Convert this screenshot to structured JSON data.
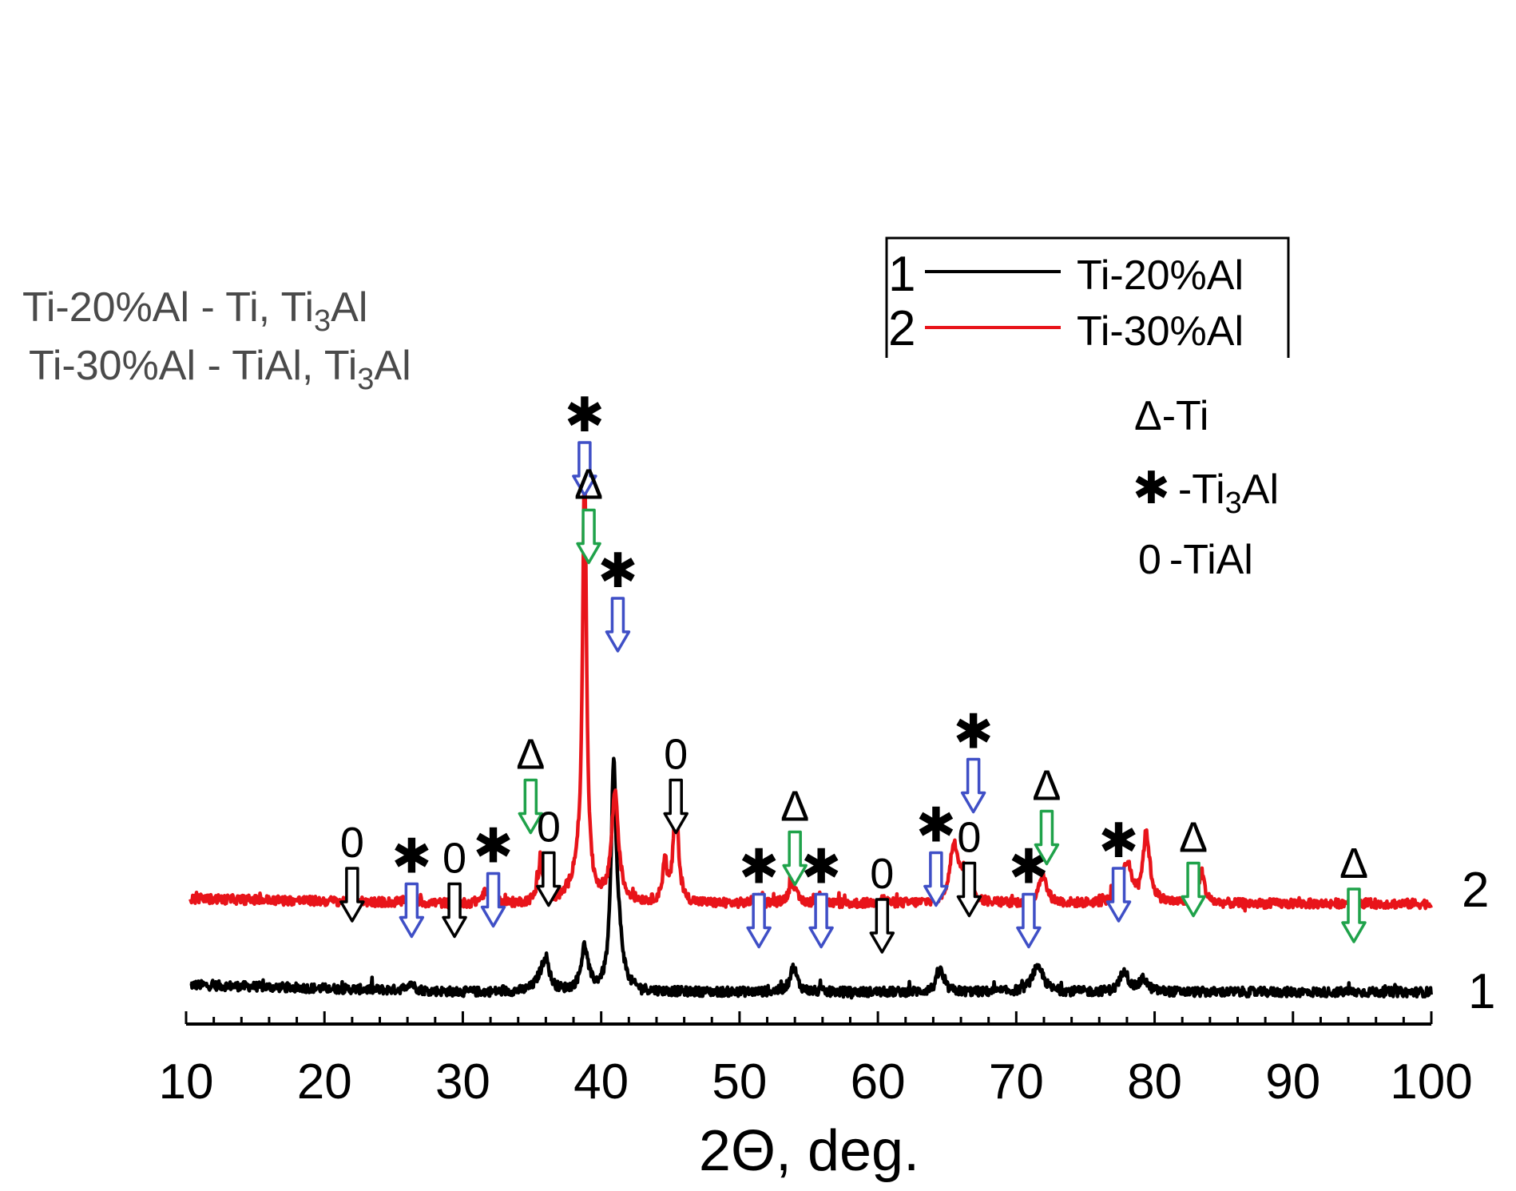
{
  "chart_data": {
    "type": "line",
    "title": "",
    "xlabel": "2Θ, deg.",
    "ylabel": "",
    "xlim": [
      10,
      100
    ],
    "x_ticks": [
      "10",
      "20",
      "30",
      "40",
      "50",
      "60",
      "70",
      "80",
      "90",
      "100"
    ],
    "grid": false,
    "composition_note": {
      "line1": {
        "label": "Ti-20%Al  -  Ti, Ti",
        "sub": "3",
        "tail": "Al"
      },
      "line2": {
        "label": "Ti-30%Al  - TiAl, Ti",
        "sub": "3",
        "tail": "Al"
      }
    },
    "legend": {
      "position": "top-right",
      "entries": [
        {
          "number": "1",
          "label": "Ti-20%Al",
          "color": "#000000"
        },
        {
          "number": "2",
          "label": "Ti-30%Al",
          "color": "#e8141a"
        }
      ]
    },
    "phase_key": [
      {
        "symbol": "Δ",
        "label": "-Ti",
        "sub": "",
        "tail": ""
      },
      {
        "symbol": "✱",
        "label": "-Ti",
        "sub": "3",
        "tail": "Al"
      },
      {
        "symbol": "0",
        "label": "-TiAl",
        "sub": "",
        "tail": ""
      }
    ],
    "series": [
      {
        "name": "Ti-20%Al",
        "curve_label": "1",
        "color": "#000000",
        "baseline": 0.1,
        "decay": 0.07,
        "peaks": [
          {
            "x": 26.2,
            "h": 0.08,
            "w": 0.3
          },
          {
            "x": 35.6,
            "h": 0.1,
            "w": 0.45
          },
          {
            "x": 36.0,
            "h": 0.28,
            "w": 0.3
          },
          {
            "x": 38.8,
            "h": 0.42,
            "w": 0.3
          },
          {
            "x": 40.9,
            "h": 2.08,
            "w": 0.22
          },
          {
            "x": 41.3,
            "h": 0.35,
            "w": 0.35
          },
          {
            "x": 53.9,
            "h": 0.24,
            "w": 0.3
          },
          {
            "x": 64.5,
            "h": 0.21,
            "w": 0.3
          },
          {
            "x": 71.4,
            "h": 0.17,
            "w": 0.45
          },
          {
            "x": 71.8,
            "h": 0.1,
            "w": 0.35
          },
          {
            "x": 77.8,
            "h": 0.22,
            "w": 0.32
          },
          {
            "x": 79.2,
            "h": 0.12,
            "w": 0.35
          }
        ]
      },
      {
        "name": "Ti-30%Al",
        "curve_label": "2",
        "color": "#e8141a",
        "baseline": 0.95,
        "decay": 0.05,
        "peaks": [
          {
            "x": 22.0,
            "h": 0.12,
            "w": 0.15
          },
          {
            "x": 26.2,
            "h": 0.06,
            "w": 0.25
          },
          {
            "x": 31.6,
            "h": 0.1,
            "w": 0.3
          },
          {
            "x": 35.6,
            "h": 0.37,
            "w": 0.22
          },
          {
            "x": 38.8,
            "h": 4.08,
            "w": 0.17
          },
          {
            "x": 38.3,
            "h": 0.25,
            "w": 0.6
          },
          {
            "x": 41.0,
            "h": 1.05,
            "w": 0.3
          },
          {
            "x": 44.6,
            "h": 0.4,
            "w": 0.18
          },
          {
            "x": 45.4,
            "h": 1.07,
            "w": 0.2
          },
          {
            "x": 51.3,
            "h": 0.06,
            "w": 0.3
          },
          {
            "x": 53.8,
            "h": 0.2,
            "w": 0.3
          },
          {
            "x": 55.8,
            "h": 0.07,
            "w": 0.25
          },
          {
            "x": 60.3,
            "h": 0.05,
            "w": 0.3
          },
          {
            "x": 65.5,
            "h": 0.53,
            "w": 0.35
          },
          {
            "x": 66.2,
            "h": 0.25,
            "w": 0.45
          },
          {
            "x": 71.9,
            "h": 0.27,
            "w": 0.35
          },
          {
            "x": 78.0,
            "h": 0.38,
            "w": 0.4
          },
          {
            "x": 79.4,
            "h": 0.66,
            "w": 0.3
          },
          {
            "x": 83.4,
            "h": 0.3,
            "w": 0.25
          },
          {
            "x": 94.3,
            "h": 0.05,
            "w": 0.3
          }
        ]
      }
    ],
    "annotations": [
      {
        "phase": "TiAl",
        "symbol": "0",
        "x": 22.0,
        "y": 1.4
      },
      {
        "phase": "Ti3Al",
        "symbol": "✱",
        "x": 26.3,
        "y": 1.25
      },
      {
        "phase": "TiAl",
        "symbol": "0",
        "x": 29.4,
        "y": 1.25
      },
      {
        "phase": "Ti3Al",
        "symbol": "✱",
        "x": 32.2,
        "y": 1.35
      },
      {
        "phase": "Ti",
        "symbol": "Δ",
        "x": 34.9,
        "y": 2.25
      },
      {
        "phase": "TiAl",
        "symbol": "0",
        "x": 36.2,
        "y": 1.55
      },
      {
        "phase": "Ti3Al",
        "symbol": "✱",
        "x": 38.8,
        "y": 5.5
      },
      {
        "phase": "Ti",
        "symbol": "Δ",
        "x": 39.1,
        "y": 4.85
      },
      {
        "phase": "Ti3Al",
        "symbol": "✱",
        "x": 41.2,
        "y": 4.0
      },
      {
        "phase": "TiAl",
        "symbol": "0",
        "x": 45.4,
        "y": 2.25
      },
      {
        "phase": "Ti3Al",
        "symbol": "✱",
        "x": 51.4,
        "y": 1.15
      },
      {
        "phase": "Ti",
        "symbol": "Δ",
        "x": 54.0,
        "y": 1.75
      },
      {
        "phase": "Ti3Al",
        "symbol": "✱",
        "x": 55.9,
        "y": 1.15
      },
      {
        "phase": "TiAl",
        "symbol": "0",
        "x": 60.3,
        "y": 1.1
      },
      {
        "phase": "Ti3Al",
        "symbol": "✱",
        "x": 64.2,
        "y": 1.55
      },
      {
        "phase": "TiAl",
        "symbol": "0",
        "x": 66.6,
        "y": 1.45
      },
      {
        "phase": "Ti3Al",
        "symbol": "✱",
        "x": 66.9,
        "y": 2.45
      },
      {
        "phase": "Ti3Al",
        "symbol": "✱",
        "x": 70.9,
        "y": 1.15
      },
      {
        "phase": "Ti",
        "symbol": "Δ",
        "x": 72.2,
        "y": 1.95
      },
      {
        "phase": "Ti3Al",
        "symbol": "✱",
        "x": 77.4,
        "y": 1.4
      },
      {
        "phase": "Ti",
        "symbol": "Δ",
        "x": 82.8,
        "y": 1.45
      },
      {
        "phase": "Ti",
        "symbol": "Δ",
        "x": 94.4,
        "y": 1.2
      }
    ],
    "symbol_colors": {
      "arrow_Ti": "#1fa24a",
      "arrow_Ti3Al": "#3f4fc6",
      "arrow_TiAl": "#000000"
    }
  }
}
